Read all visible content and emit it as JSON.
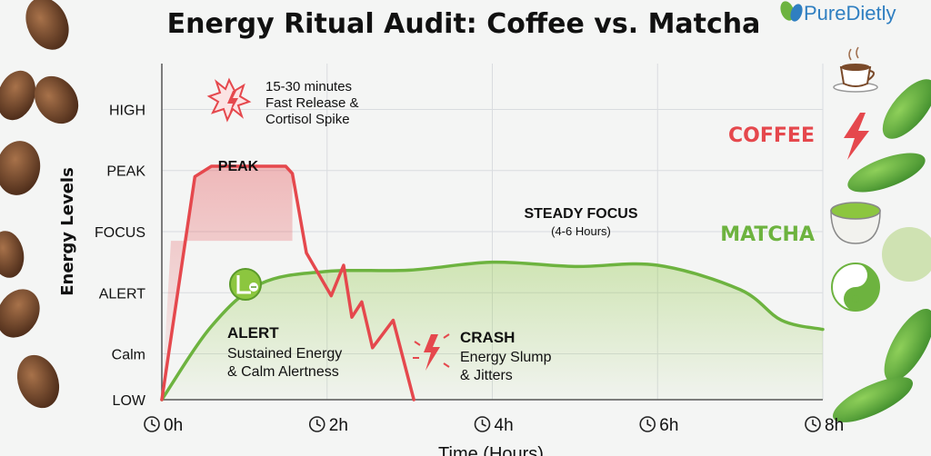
{
  "brand": {
    "name": "PureDietly"
  },
  "chart_data": {
    "type": "line",
    "title": "Energy Ritual Audit: Coffee vs. Matcha",
    "xlabel": "Time (Hours)",
    "ylabel": "Energy Levels",
    "xlim": [
      0,
      8
    ],
    "ylim": [
      0,
      5.5
    ],
    "x_ticks": [
      {
        "value": 0,
        "label": "0h"
      },
      {
        "value": 2,
        "label": "2h"
      },
      {
        "value": 4,
        "label": "4h"
      },
      {
        "value": 6,
        "label": "6h"
      },
      {
        "value": 8,
        "label": "8h"
      }
    ],
    "y_ticks": [
      {
        "value": 0,
        "label": "LOW"
      },
      {
        "value": 0.75,
        "label": "Calm"
      },
      {
        "value": 1.75,
        "label": "ALERT"
      },
      {
        "value": 2.75,
        "label": "FOCUS"
      },
      {
        "value": 3.75,
        "label": "PEAK"
      },
      {
        "value": 4.75,
        "label": "HIGH"
      }
    ],
    "grid": true,
    "series": [
      {
        "name": "COFFEE",
        "color": "#e5484d",
        "x": [
          0,
          0.4,
          0.6,
          1.5,
          1.58,
          1.75,
          2.05,
          2.2,
          2.3,
          2.42,
          2.55,
          2.8,
          3.05
        ],
        "y": [
          0,
          3.65,
          3.82,
          3.82,
          3.7,
          2.4,
          1.7,
          2.2,
          1.35,
          1.6,
          0.85,
          1.3,
          0
        ]
      },
      {
        "name": "MATCHA",
        "color": "#6db33f",
        "x": [
          0,
          0.6,
          1.2,
          2.0,
          3.0,
          4.0,
          5.0,
          6.0,
          7.0,
          7.5,
          8.0
        ],
        "y": [
          0,
          1.2,
          1.9,
          2.1,
          2.12,
          2.25,
          2.18,
          2.2,
          1.8,
          1.3,
          1.15
        ]
      }
    ],
    "annotations": [
      {
        "id": "coffee_time",
        "text": "15-30 minutes"
      },
      {
        "id": "coffee_release",
        "text": "Fast Release &"
      },
      {
        "id": "coffee_cortisol",
        "text": "Cortisol Spike"
      },
      {
        "id": "peak",
        "text": "PEAK"
      },
      {
        "id": "steady",
        "text": "STEADY FOCUS"
      },
      {
        "id": "steady_sub",
        "text": "(4-6 Hours)"
      },
      {
        "id": "alert",
        "text": "ALERT"
      },
      {
        "id": "alert_sub1",
        "text": "Sustained Energy"
      },
      {
        "id": "alert_sub2",
        "text": "& Calm Alertness"
      },
      {
        "id": "crash",
        "text": "CRASH"
      },
      {
        "id": "crash_sub1",
        "text": "Energy Slump"
      },
      {
        "id": "crash_sub2",
        "text": "& Jitters"
      }
    ],
    "legend": [
      {
        "name": "COFFEE",
        "color": "#e5484d",
        "icons": [
          "coffee-cup-icon",
          "lightning-bolt-icon"
        ]
      },
      {
        "name": "MATCHA",
        "color": "#6db33f",
        "icons": [
          "matcha-bowl-icon",
          "yin-yang-icon"
        ]
      }
    ],
    "legend_position": "right"
  }
}
